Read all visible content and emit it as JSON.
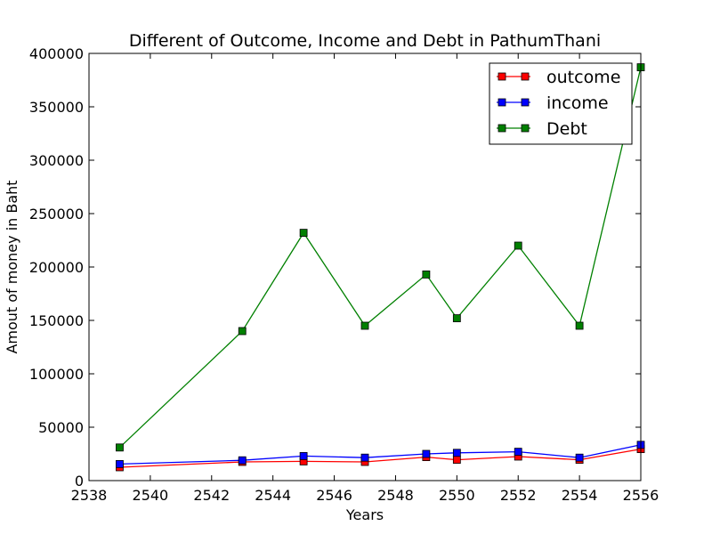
{
  "chart_data": {
    "type": "line",
    "title": "Different of Outcome, Income and Debt in PathumThani",
    "xlabel": "Years",
    "ylabel": "Amout of money in Baht",
    "xlim": [
      2538,
      2556
    ],
    "ylim": [
      0,
      400000
    ],
    "xticks": [
      2538,
      2540,
      2542,
      2544,
      2546,
      2548,
      2550,
      2552,
      2554,
      2556
    ],
    "yticks": [
      0,
      50000,
      100000,
      150000,
      200000,
      250000,
      300000,
      350000,
      400000
    ],
    "grid": false,
    "legend_position": "top-right",
    "x": [
      2539,
      2543,
      2545,
      2547,
      2549,
      2550,
      2552,
      2554,
      2556
    ],
    "series": [
      {
        "name": "outcome",
        "color": "#ff0000",
        "marker": "square",
        "values": [
          12500,
          17500,
          18000,
          17500,
          22000,
          19500,
          22500,
          19500,
          29500
        ]
      },
      {
        "name": "income",
        "color": "#0000ff",
        "marker": "square",
        "values": [
          15500,
          19000,
          23000,
          21500,
          25000,
          26000,
          27000,
          21500,
          33500
        ]
      },
      {
        "name": "Debt",
        "color": "#008000",
        "marker": "square",
        "values": [
          31000,
          140000,
          232000,
          145000,
          193000,
          152000,
          220000,
          145000,
          387000
        ]
      }
    ]
  }
}
